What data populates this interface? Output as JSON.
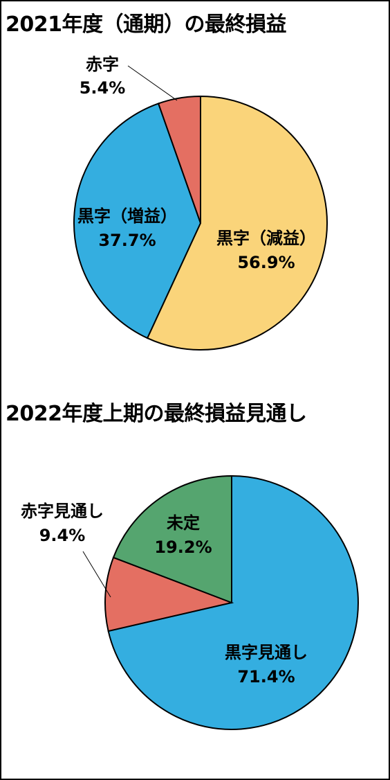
{
  "chart_data": [
    {
      "type": "pie",
      "title": "2021年度（通期）の最終損益",
      "slices": [
        {
          "label": "黒字（減益）",
          "value": 56.9,
          "value_label": "56.9%",
          "color": "#FAD47A"
        },
        {
          "label": "黒字（増益）",
          "value": 37.7,
          "value_label": "37.7%",
          "color": "#34AEE0"
        },
        {
          "label": "赤字",
          "value": 5.4,
          "value_label": "5.4%",
          "color": "#E46F62"
        }
      ]
    },
    {
      "type": "pie",
      "title": "2022年度上期の最終損益見通し",
      "slices": [
        {
          "label": "黒字見通し",
          "value": 71.4,
          "value_label": "71.4%",
          "color": "#34AEE0"
        },
        {
          "label": "赤字見通し",
          "value": 9.4,
          "value_label": "9.4%",
          "color": "#E46F62"
        },
        {
          "label": "未定",
          "value": 19.2,
          "value_label": "19.2%",
          "color": "#55A56F"
        }
      ]
    }
  ]
}
